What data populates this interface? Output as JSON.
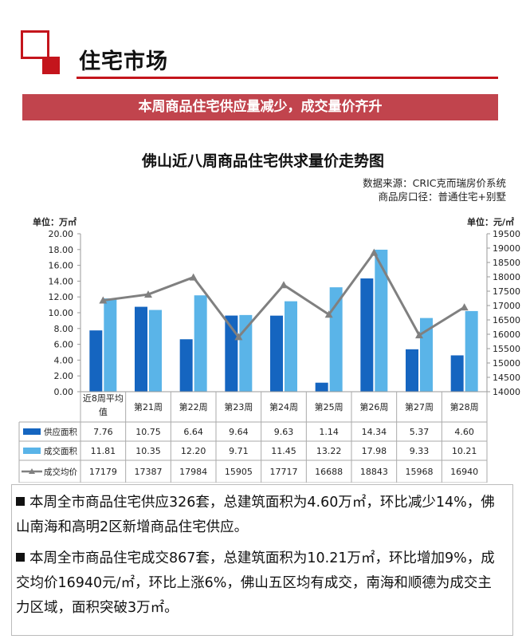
{
  "page_title": "住宅市场",
  "banner": "本周商品住宅供应量减少，成交量价齐升",
  "chart_data": {
    "type": "bar",
    "title": "佛山近八周商品住宅供求量价走势图",
    "source_line1": "数据来源：CRIC克而瑞房价系统",
    "source_line2": "商品房口径：普通住宅+别墅",
    "left_axis_unit": "单位：万㎡",
    "right_axis_unit": "单位：元/㎡",
    "left_ylim": [
      0,
      20
    ],
    "left_ticks": [
      "0.00",
      "2.00",
      "4.00",
      "6.00",
      "8.00",
      "10.00",
      "12.00",
      "14.00",
      "16.00",
      "18.00",
      "20.00"
    ],
    "right_ylim": [
      14000,
      19500
    ],
    "right_ticks": [
      "14000",
      "14500",
      "15000",
      "15500",
      "16000",
      "16500",
      "17000",
      "17500",
      "18000",
      "18500",
      "19000",
      "19500"
    ],
    "categories": [
      "近8周平均值",
      "第21周",
      "第22周",
      "第23周",
      "第24周",
      "第25周",
      "第26周",
      "第27周",
      "第28周"
    ],
    "series": [
      {
        "name": "供应面积",
        "type": "bar",
        "axis": "left",
        "color": "#1565c0",
        "values": [
          7.76,
          10.75,
          6.64,
          9.64,
          9.63,
          1.14,
          14.34,
          5.37,
          4.6
        ],
        "labels": [
          "7.76",
          "10.75",
          "6.64",
          "9.64",
          "9.63",
          "1.14",
          "14.34",
          "5.37",
          "4.60"
        ]
      },
      {
        "name": "成交面积",
        "type": "bar",
        "axis": "left",
        "color": "#5ab4e8",
        "values": [
          11.81,
          10.35,
          12.2,
          9.71,
          11.45,
          13.22,
          17.98,
          9.33,
          10.21
        ],
        "labels": [
          "11.81",
          "10.35",
          "12.20",
          "9.71",
          "11.45",
          "13.22",
          "17.98",
          "9.33",
          "10.21"
        ]
      },
      {
        "name": "成交均价",
        "type": "line",
        "axis": "right",
        "color": "#808080",
        "values": [
          17179,
          17387,
          17984,
          15905,
          17717,
          16688,
          18843,
          15968,
          16940
        ],
        "labels": [
          "17179",
          "17387",
          "17984",
          "15905",
          "17717",
          "16688",
          "18843",
          "15968",
          "16940"
        ]
      }
    ]
  },
  "notes": [
    "本周全市商品住宅供应326套，总建筑面积为4.60万㎡，环比减少14%，佛山南海和高明2区新增商品住宅供应。",
    "本周全市商品住宅成交867套，总建筑面积为10.21万㎡，环比增加9%，成交均价16940元/㎡，环比上涨6%，佛山五区均有成交，南海和顺德为成交主力区域，面积突破3万㎡。"
  ]
}
